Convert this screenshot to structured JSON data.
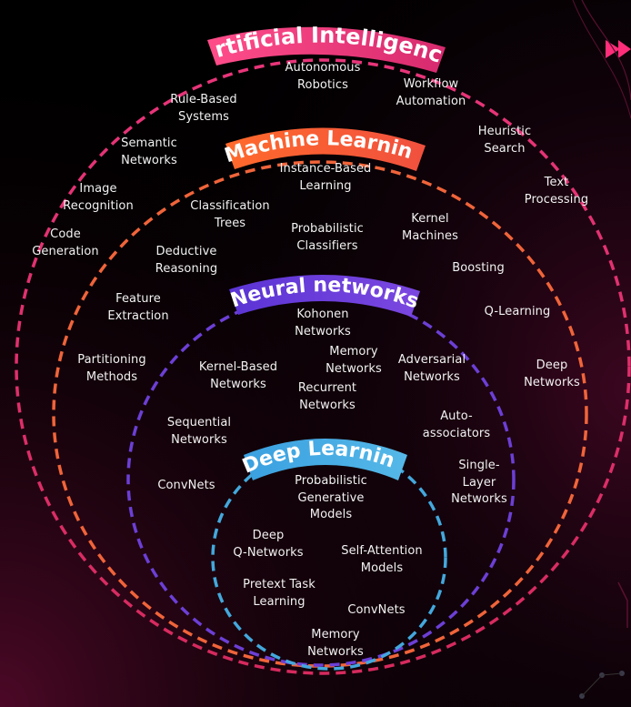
{
  "colors": {
    "background": "#000000",
    "ai": "#e8357a",
    "ml": "#f2643a",
    "nn": "#6c3fd6",
    "dl": "#43a8dc",
    "text": "#f2f2f2"
  },
  "banners": {
    "ai": "Artificial Intelligence",
    "ml": "Machine Learning",
    "nn": "Neural networks",
    "dl": "Deep Learning"
  },
  "ai_terms": [
    "Autonomous\nRobotics",
    "Workflow\nAutomation",
    "Rule-Based\nSystems",
    "Heuristic\nSearch",
    "Semantic\nNetworks",
    "Text\nProcessing",
    "Image\nRecognition",
    "Code\nGeneration"
  ],
  "ml_terms": [
    "Instance-Based\nLearning",
    "Classification\nTrees",
    "Probabilistic\nClassifiers",
    "Kernel\nMachines",
    "Deductive\nReasoning",
    "Boosting",
    "Feature\nExtraction",
    "Q-Learning",
    "Partitioning\nMethods",
    "Deep\nNetworks"
  ],
  "nn_terms": [
    "Kohonen\nNetworks",
    "Memory\nNetworks",
    "Kernel-Based\nNetworks",
    "Adversarial\nNetworks",
    "Recurrent\nNetworks",
    "Sequential\nNetworks",
    "Auto-\nassociators",
    "ConvNets",
    "Single-\nLayer\nNetworks"
  ],
  "dl_terms": [
    "Probabilistic\nGenerative\nModels",
    "Deep\nQ-Networks",
    "Self-Attention\nModels",
    "Pretext Task\nLearning",
    "ConvNets",
    "Memory\nNetworks"
  ]
}
